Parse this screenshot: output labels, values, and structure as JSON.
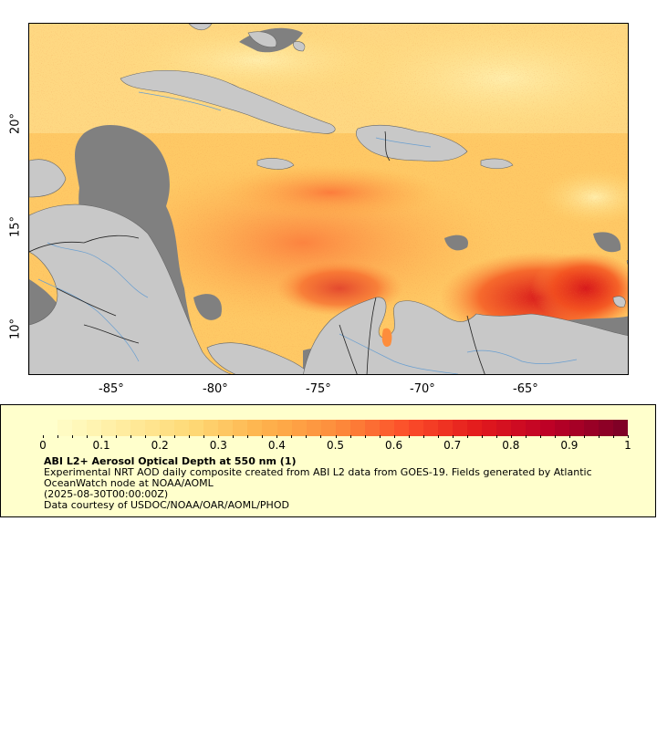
{
  "map": {
    "longitude_ticks": [
      "-85°",
      "-80°",
      "-75°",
      "-70°",
      "-65°"
    ],
    "latitude_ticks": [
      "10°",
      "15°",
      "20°"
    ],
    "colors": {
      "land": "#c8c8c8",
      "no_data": "#808080",
      "coastline": "#555555",
      "rivers": "#6a9fd0",
      "borders": "#000000"
    }
  },
  "legend": {
    "colorbar_labels": [
      "0",
      "0.1",
      "0.2",
      "0.3",
      "0.4",
      "0.5",
      "0.6",
      "0.7",
      "0.8",
      "0.9",
      "1"
    ],
    "colormap": [
      "#ffffcc",
      "#ffeda0",
      "#fed976",
      "#feb24c",
      "#fd8d3c",
      "#fc4e2a",
      "#e31a1c",
      "#bd0026",
      "#800026"
    ],
    "title": "ABI L2+ Aerosol Optical Depth at 550 nm (1)",
    "description": "Experimental NRT AOD daily composite created from ABI L2 data from GOES-19. Fields generated by Atlantic OceanWatch node at NOAA/AOML",
    "timestamp": "(2025-08-30T00:00:00Z)",
    "credit": "Data courtesy of USDOC/NOAA/OAR/AOML/PHOD"
  }
}
